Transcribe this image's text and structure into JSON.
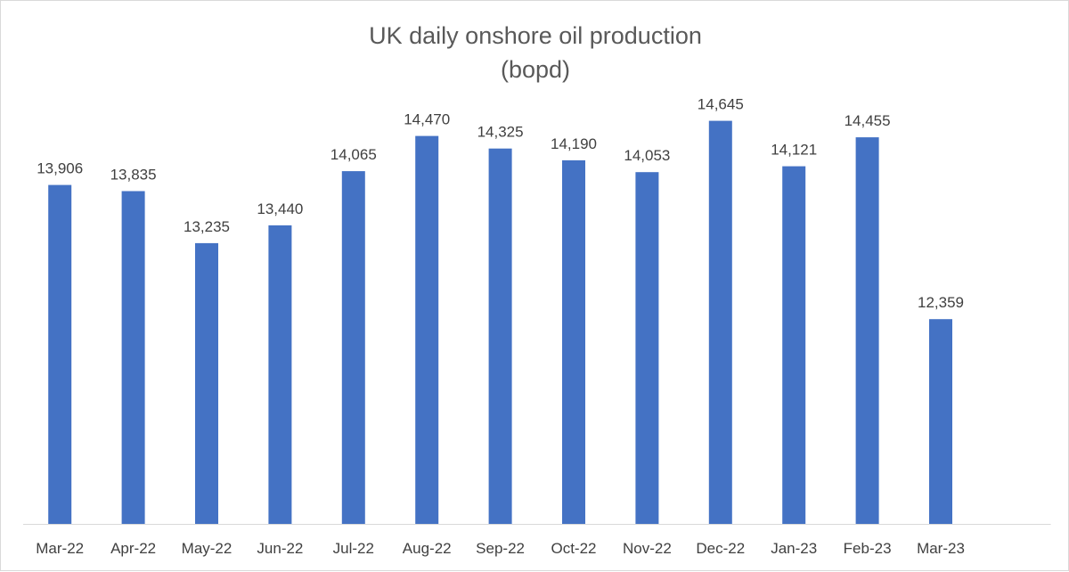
{
  "chart_data": {
    "type": "bar",
    "title_lines": [
      "UK daily onshore oil production",
      "(bopd)"
    ],
    "categories": [
      "Mar-22",
      "Apr-22",
      "May-22",
      "Jun-22",
      "Jul-22",
      "Aug-22",
      "Sep-22",
      "Oct-22",
      "Nov-22",
      "Dec-22",
      "Jan-23",
      "Feb-23",
      "Mar-23"
    ],
    "values": [
      13906,
      13835,
      13235,
      13440,
      14065,
      14470,
      14325,
      14190,
      14053,
      14645,
      14121,
      14455,
      12359
    ],
    "value_labels": [
      "13,906",
      "13,835",
      "13,235",
      "13,440",
      "14,065",
      "14,470",
      "14,325",
      "14,190",
      "14,053",
      "14,645",
      "14,121",
      "14,455",
      "12,359"
    ],
    "ylim": [
      10000,
      15000
    ],
    "grid": false,
    "legend": "none",
    "bar_color": "#4472c4",
    "axis_color": "#d9d9d9"
  }
}
